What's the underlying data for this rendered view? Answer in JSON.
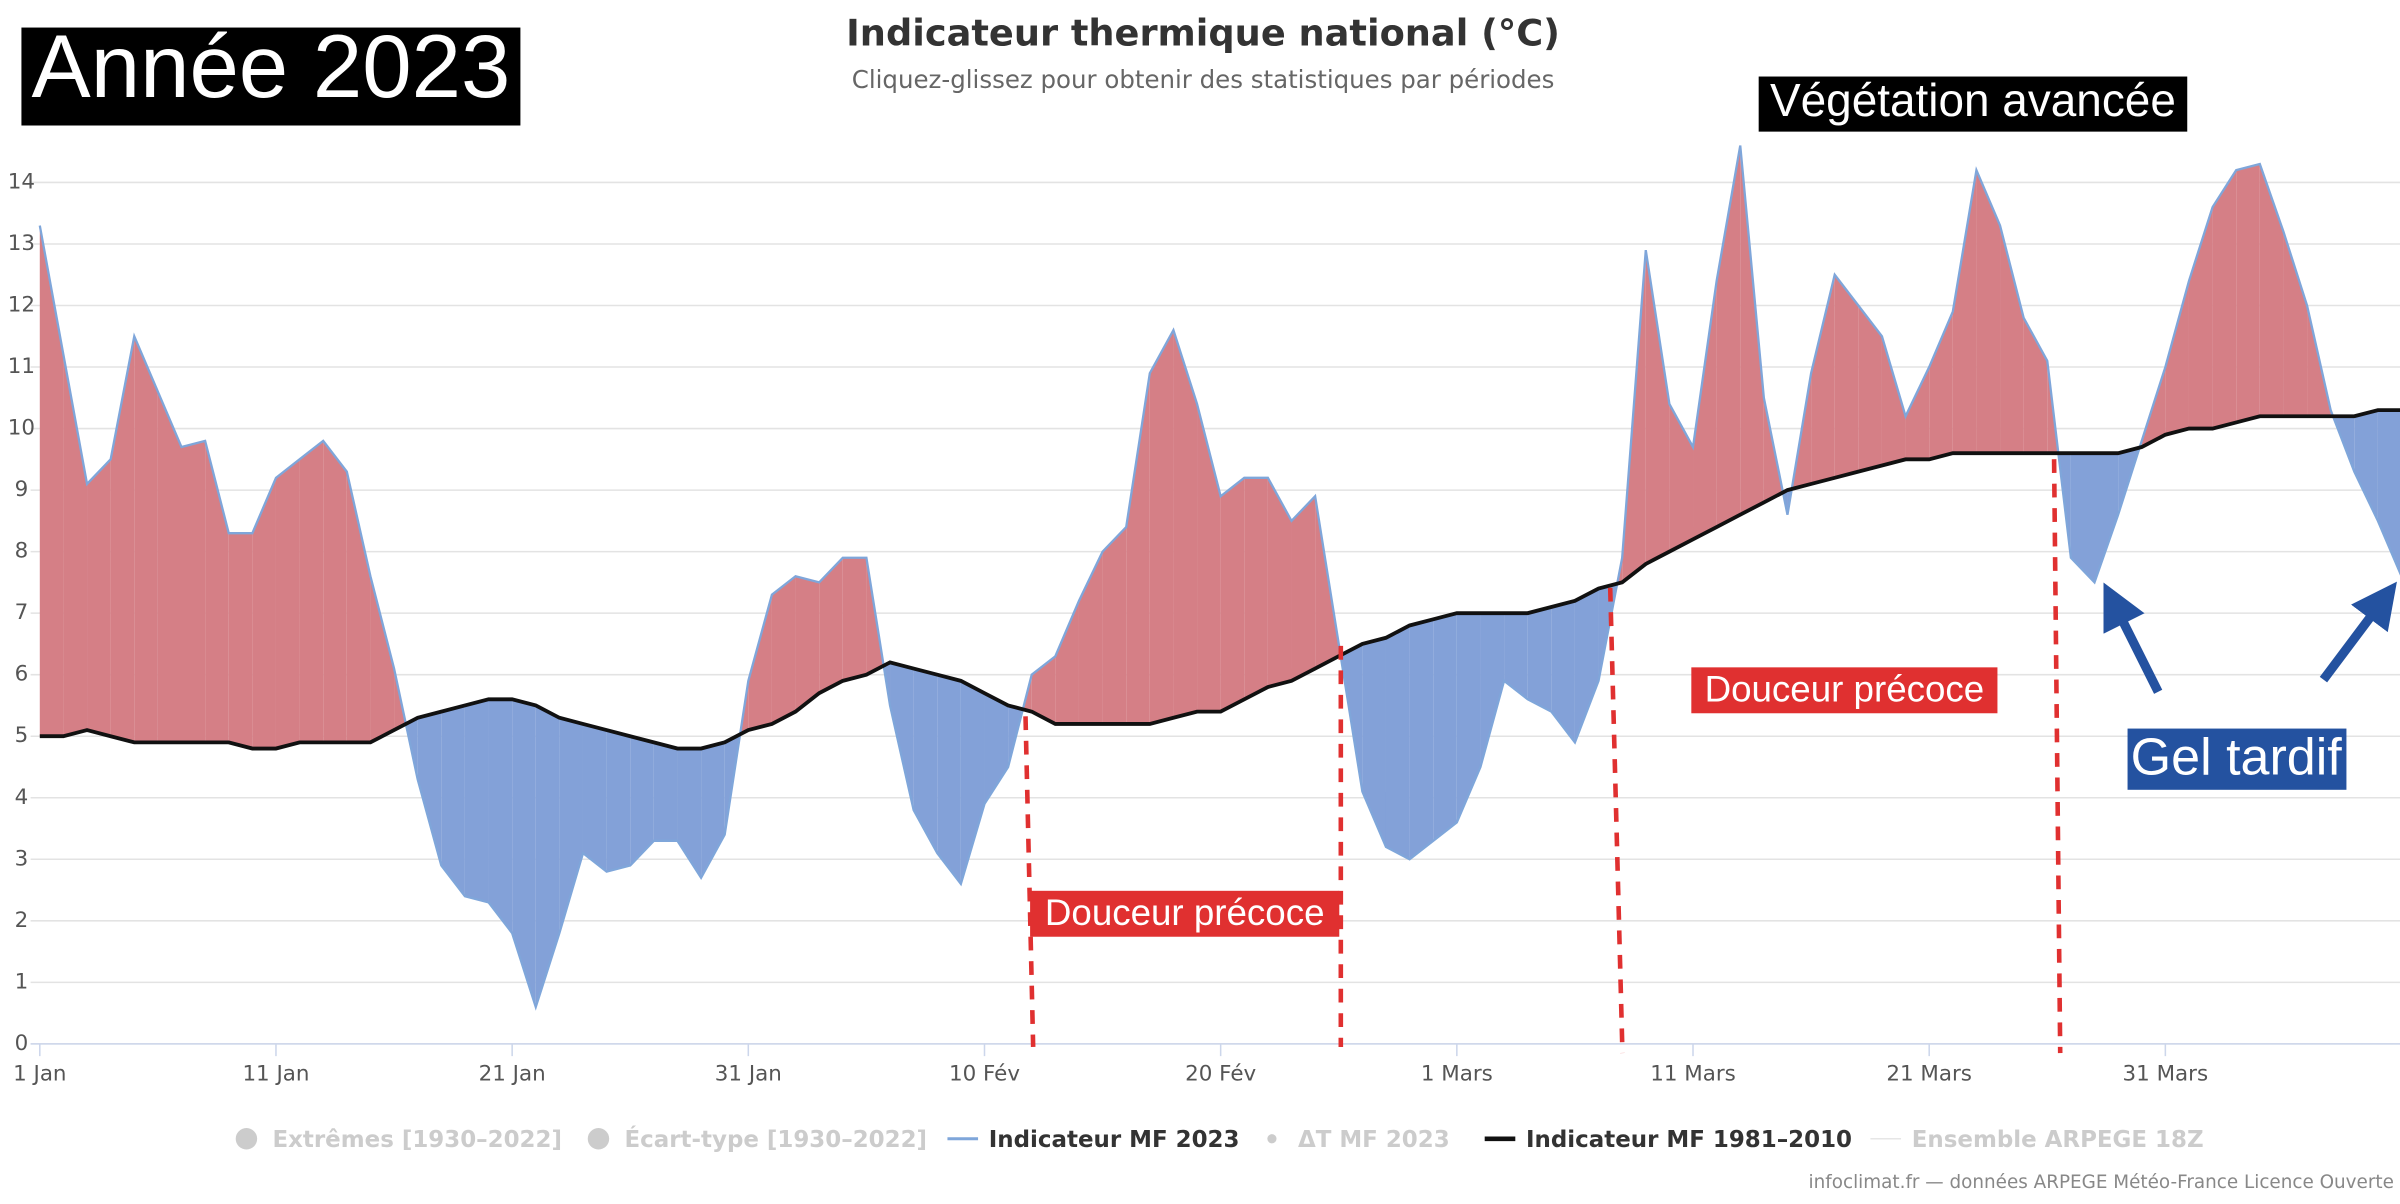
{
  "chart_data": {
    "type": "anomaly-area",
    "title": "Indicateur thermique national (°C)",
    "subtitle": "Cliquez-glissez pour obtenir des statistiques par périodes",
    "x": [
      0,
      1,
      2,
      3,
      4,
      5,
      6,
      7,
      8,
      9,
      10,
      11,
      12,
      13,
      14,
      15,
      16,
      17,
      18,
      19,
      20,
      21,
      22,
      23,
      24,
      25,
      26,
      27,
      28,
      29,
      30,
      31,
      32,
      33,
      34,
      35,
      36,
      37,
      38,
      39,
      40,
      41,
      42,
      43,
      44,
      45,
      46,
      47,
      48,
      49,
      50,
      51,
      52,
      53,
      54,
      55,
      56,
      57,
      58,
      59,
      60,
      61,
      62,
      63,
      64,
      65,
      66,
      67,
      68,
      69,
      70,
      71,
      72,
      73,
      74,
      75,
      76,
      77,
      78,
      79,
      80,
      81,
      82,
      83,
      84,
      85,
      86,
      87,
      88,
      89,
      90,
      91,
      92,
      93,
      94,
      95,
      96,
      97,
      98,
      99,
      100
    ],
    "series": [
      {
        "name": "Indicateur MF 2023",
        "color": "#7fa6da",
        "values": [
          13.3,
          11.2,
          9.1,
          9.5,
          11.5,
          10.6,
          9.7,
          9.8,
          8.3,
          8.3,
          9.2,
          9.5,
          9.8,
          9.3,
          7.6,
          6.1,
          4.3,
          2.9,
          2.4,
          2.3,
          1.8,
          0.6,
          1.8,
          3.1,
          2.8,
          2.9,
          3.3,
          3.3,
          2.7,
          3.4,
          5.9,
          7.3,
          7.6,
          7.5,
          7.9,
          7.9,
          5.5,
          3.8,
          3.1,
          2.6,
          3.9,
          4.5,
          6.0,
          6.3,
          7.2,
          8.0,
          8.4,
          10.9,
          11.6,
          10.4,
          8.9,
          9.2,
          9.2,
          8.5,
          8.9,
          6.5,
          4.1,
          3.2,
          3.0,
          3.3,
          3.6,
          4.5,
          5.9,
          5.6,
          5.4,
          4.9,
          5.9,
          7.9,
          12.9,
          10.4,
          9.7,
          12.4,
          14.6,
          10.5,
          8.6,
          10.9,
          12.5,
          12.0,
          11.5,
          10.2,
          11.0,
          11.9,
          14.2,
          13.3,
          11.8,
          11.1,
          7.9,
          7.5,
          8.6,
          9.8,
          11.0,
          12.4,
          13.6,
          14.2,
          14.3,
          13.2,
          12.0,
          10.3,
          9.3,
          8.5,
          7.6
        ]
      },
      {
        "name": "Indicateur MF 1981–2010",
        "color": "#111111",
        "values": [
          5.0,
          5.0,
          5.1,
          5.0,
          4.9,
          4.9,
          4.9,
          4.9,
          4.9,
          4.8,
          4.8,
          4.9,
          4.9,
          4.9,
          4.9,
          5.1,
          5.3,
          5.4,
          5.5,
          5.6,
          5.6,
          5.5,
          5.3,
          5.2,
          5.1,
          5.0,
          4.9,
          4.8,
          4.8,
          4.9,
          5.1,
          5.2,
          5.4,
          5.7,
          5.9,
          6.0,
          6.2,
          6.1,
          6.0,
          5.9,
          5.7,
          5.5,
          5.4,
          5.2,
          5.2,
          5.2,
          5.2,
          5.2,
          5.3,
          5.4,
          5.4,
          5.6,
          5.8,
          5.9,
          6.1,
          6.3,
          6.5,
          6.6,
          6.8,
          6.9,
          7.0,
          7.0,
          7.0,
          7.0,
          7.1,
          7.2,
          7.4,
          7.5,
          7.8,
          8.0,
          8.2,
          8.4,
          8.6,
          8.8,
          9.0,
          9.1,
          9.2,
          9.3,
          9.4,
          9.5,
          9.5,
          9.6,
          9.6,
          9.6,
          9.6,
          9.6,
          9.6,
          9.6,
          9.6,
          9.7,
          9.9,
          10.0,
          10.0,
          10.1,
          10.2,
          10.2,
          10.2,
          10.2,
          10.2,
          10.3,
          10.3
        ]
      }
    ],
    "above_color": "#d57f86",
    "below_color": "#83a1d8",
    "xlim": [
      0,
      100
    ],
    "xticks": [
      {
        "value": 0,
        "label": "1 Jan"
      },
      {
        "value": 10,
        "label": "11 Jan"
      },
      {
        "value": 20,
        "label": "21 Jan"
      },
      {
        "value": 30,
        "label": "31 Jan"
      },
      {
        "value": 40,
        "label": "10 Fév"
      },
      {
        "value": 50,
        "label": "20 Fév"
      },
      {
        "value": 60,
        "label": "1 Mars"
      },
      {
        "value": 70,
        "label": "11 Mars"
      },
      {
        "value": 80,
        "label": "21 Mars"
      },
      {
        "value": 90,
        "label": "31 Mars"
      }
    ],
    "ylim": [
      0,
      15
    ],
    "yticks": [
      0,
      1,
      2,
      3,
      4,
      5,
      6,
      7,
      8,
      9,
      10,
      11,
      12,
      13,
      14
    ],
    "grid": true,
    "legend_inactive": [
      "Extrêmes [1930–2022]",
      "Écart-type [1930–2022]",
      "ΔT MF 2023",
      "Ensemble ARPEGE 18Z"
    ],
    "annotations": [
      "Année 2023",
      "Végétation avancée",
      "Douceur précoce",
      "Douceur précoce",
      "Gel tardif"
    ],
    "credits": "infoclimat.fr — données ARPEGE Météo-France Licence Ouverte"
  }
}
